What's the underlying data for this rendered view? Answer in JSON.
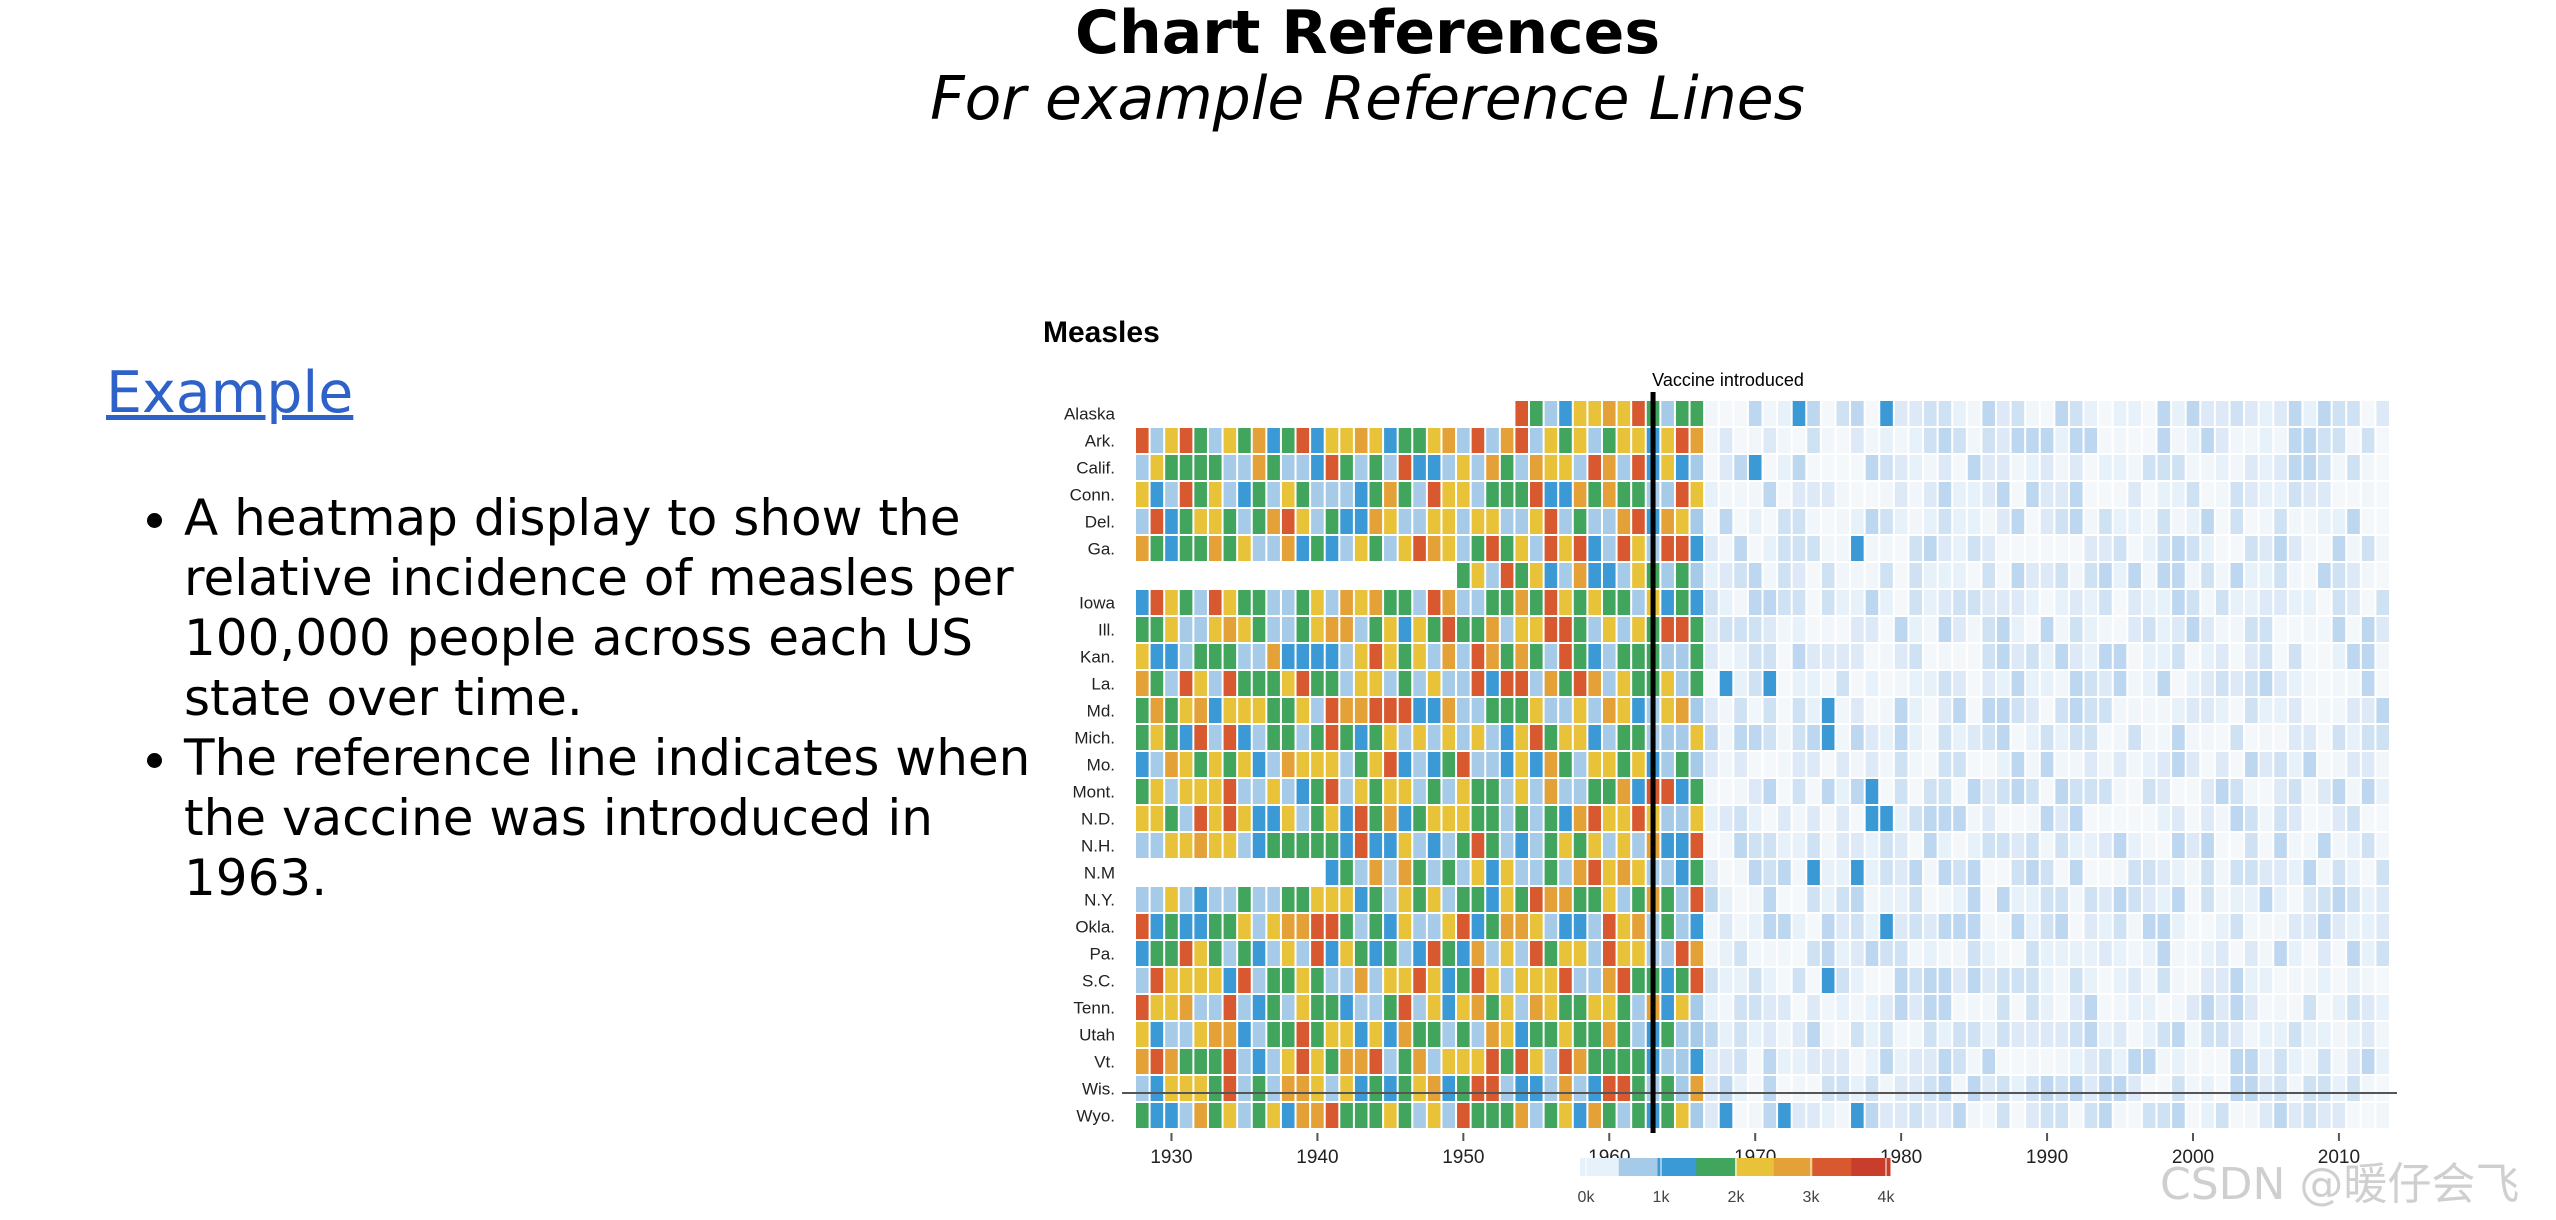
{
  "slide": {
    "title": "Chart References",
    "subtitle": "For example Reference Lines",
    "example_link": "Example",
    "bullets": [
      [
        "A heatmap display to show the",
        "relative incidence of measles per",
        "100,000 people across each US",
        "state over time."
      ],
      [
        "The reference line indicates when",
        "the vaccine was introduced in",
        "1963."
      ]
    ]
  },
  "watermark": "CSDN @暖仔会飞",
  "chart_data": {
    "type": "heatmap",
    "title": "Measles",
    "xlabel": "",
    "ylabel": "",
    "x_range": [
      1928,
      2013
    ],
    "x_ticks": [
      1930,
      1940,
      1950,
      1960,
      1970,
      1980,
      1990,
      2000,
      2010
    ],
    "row_labels": [
      "Alaska",
      "Ark.",
      "Calif.",
      "Conn.",
      "Del.",
      "Ga.",
      "",
      "Iowa",
      "Ill.",
      "Kan.",
      "La.",
      "Md.",
      "Mich.",
      "Mo.",
      "Mont.",
      "N.D.",
      "N.H.",
      "N.M",
      "N.Y.",
      "Okla.",
      "Pa.",
      "S.C.",
      "Tenn.",
      "Utah",
      "Vt.",
      "Wis.",
      "Wyo."
    ],
    "reference_line": {
      "year": 1963,
      "label": "Vaccine introduced"
    },
    "color_scale": {
      "stops": [
        "#e7f1fa",
        "#a6cbe9",
        "#3b9ad6",
        "#41a55e",
        "#e8c33a",
        "#e3a137",
        "#d8592f",
        "#c83d2b"
      ],
      "legend_ticks": [
        "0k",
        "1k",
        "2k",
        "3k",
        "4k"
      ]
    },
    "value_summary": "Pre-1963 cells mostly 1k–3k+ (green/yellow/orange/red); after 1966 near 0 (light blue).",
    "grid": false
  }
}
